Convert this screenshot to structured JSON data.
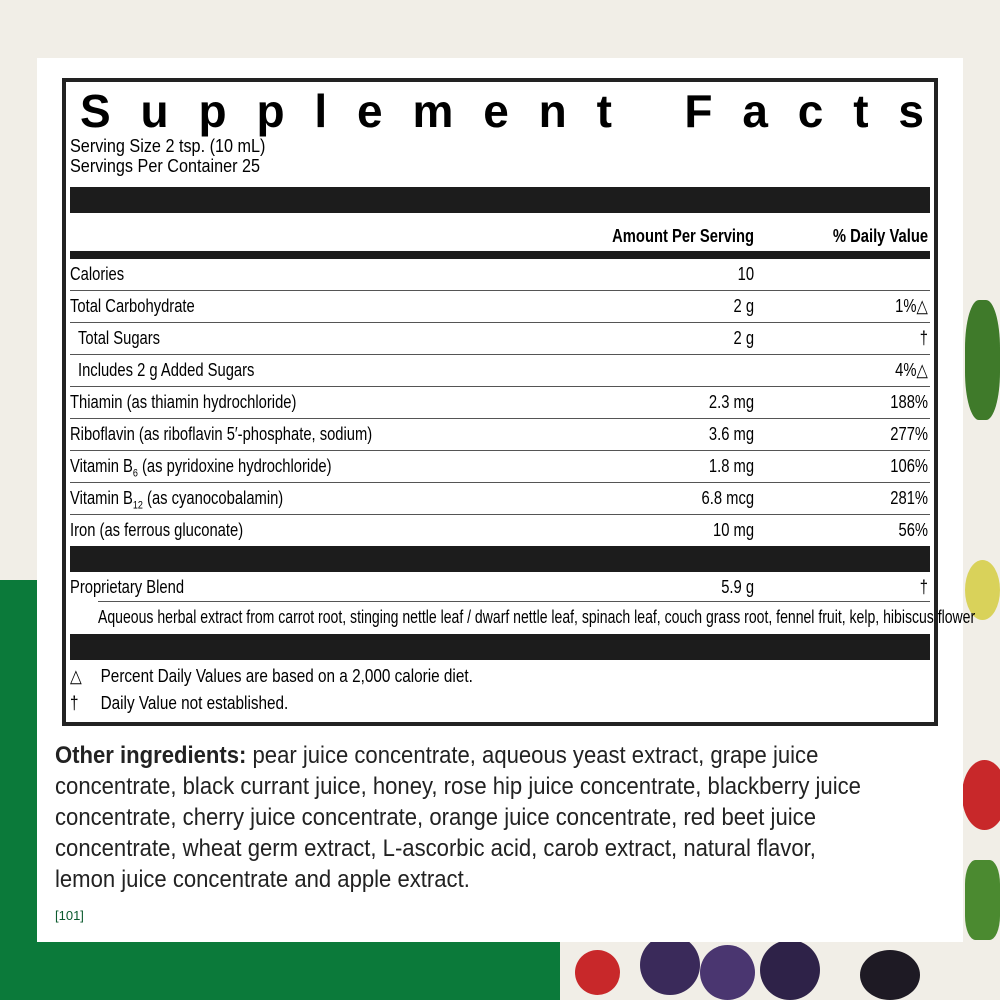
{
  "title": "Supplement Facts",
  "serving_size": "Serving Size 2 tsp. (10 mL)",
  "servings_per_container": "Servings Per Container 25",
  "header": {
    "amount": "Amount Per Serving",
    "dv": "% Daily Value"
  },
  "rows": [
    {
      "name": "Calories",
      "amount": "10",
      "dv": ""
    },
    {
      "name": "Total Carbohydrate",
      "amount": "2 g",
      "dv": "1%△"
    },
    {
      "name": "Total Sugars",
      "amount": "2 g",
      "dv": "†"
    },
    {
      "name": "Includes 2 g Added Sugars",
      "amount": "",
      "dv": "4%△"
    },
    {
      "name": "Thiamin (as thiamin hydrochloride)",
      "amount": "2.3 mg",
      "dv": "188%"
    },
    {
      "name": "Riboflavin (as riboflavin 5′-phosphate, sodium)",
      "amount": "3.6 mg",
      "dv": "277%"
    },
    {
      "name_pre": "Vitamin B",
      "name_sub": "6",
      "name_post": " (as pyridoxine hydrochloride)",
      "amount": "1.8 mg",
      "dv": "106%"
    },
    {
      "name_pre": "Vitamin B",
      "name_sub": "12",
      "name_post": " (as cyanocobalamin)",
      "amount": "6.8 mcg",
      "dv": "281%"
    },
    {
      "name": "Iron (as ferrous gluconate)",
      "amount": "10 mg",
      "dv": "56%"
    }
  ],
  "blend": {
    "name": "Proprietary Blend",
    "amount": "5.9 g",
    "dv": "†",
    "ingredients": "Aqueous herbal extract from carrot root, stinging nettle leaf / dwarf nettle leaf, spinach leaf, couch grass root, fennel fruit, kelp, hibiscus flower"
  },
  "footnotes": [
    {
      "symbol": "△",
      "text": "Percent Daily Values are based on a 2,000 calorie diet."
    },
    {
      "symbol": "†",
      "text": "Daily Value not established."
    }
  ],
  "other": {
    "label": "Other ingredients:",
    "text": " pear juice concentrate, aqueous yeast extract, grape juice concentrate, black currant juice, honey, rose hip juice concentrate, blackberry juice concentrate, cherry juice concentrate, orange juice concentrate, red beet juice concentrate, wheat germ extract, L-ascorbic acid, carob extract, natural flavor, lemon juice concentrate and apple extract."
  },
  "code": "[101]"
}
